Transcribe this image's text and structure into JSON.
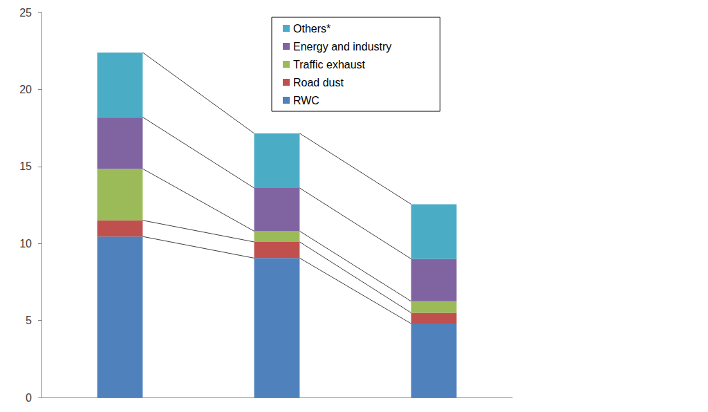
{
  "chart_data": {
    "type": "bar",
    "categories": [
      null,
      null,
      null
    ],
    "series": [
      {
        "name": "RWC",
        "color": "#4f81bd",
        "values": [
          10.45,
          9.05,
          4.8
        ]
      },
      {
        "name": "Road dust",
        "color": "#c0504d",
        "values": [
          1.05,
          1.05,
          0.7
        ]
      },
      {
        "name": "Traffic exhaust",
        "color": "#9bbb59",
        "values": [
          3.35,
          0.7,
          0.75
        ]
      },
      {
        "name": "Energy and industry",
        "color": "#8064a2",
        "values": [
          3.35,
          2.8,
          2.75
        ]
      },
      {
        "name": "Others*",
        "color": "#4bacc6",
        "values": [
          4.2,
          3.55,
          3.55
        ]
      }
    ],
    "ylim": [
      0,
      25
    ],
    "yticks": [
      0,
      5,
      10,
      15,
      20,
      25
    ],
    "grid": false,
    "stacked": true,
    "legend": "top",
    "tick_labels": "y"
  }
}
